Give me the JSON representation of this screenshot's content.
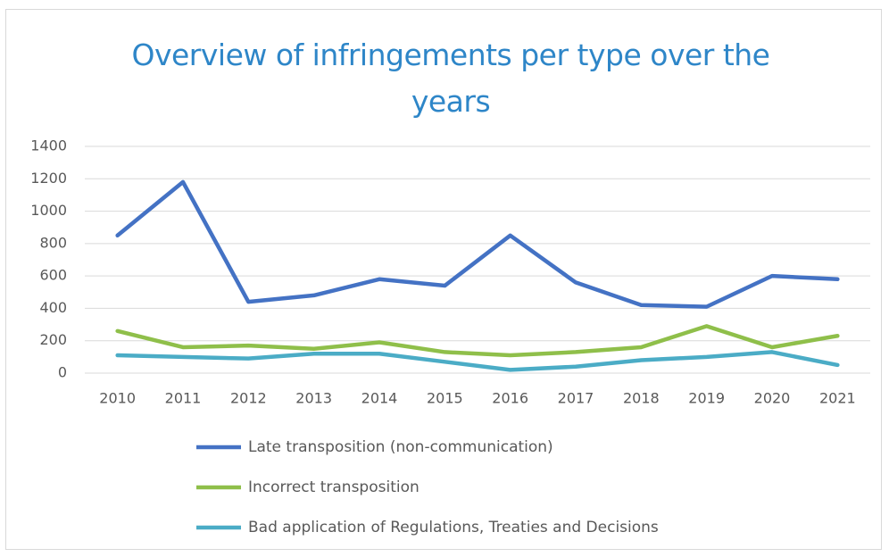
{
  "chart_data": {
    "type": "line",
    "title": "Overview of infringements per type over the years",
    "categories": [
      "2010",
      "2011",
      "2012",
      "2013",
      "2014",
      "2015",
      "2016",
      "2017",
      "2018",
      "2019",
      "2020",
      "2021"
    ],
    "series": [
      {
        "name": "Late transposition (non-communication)",
        "color": "#4472c4",
        "values": [
          850,
          1180,
          440,
          480,
          580,
          540,
          850,
          560,
          420,
          410,
          600,
          580
        ]
      },
      {
        "name": "Incorrect transposition",
        "color": "#8fbf4a",
        "values": [
          260,
          160,
          170,
          150,
          190,
          130,
          110,
          130,
          160,
          290,
          160,
          230
        ]
      },
      {
        "name": "Bad application of Regulations, Treaties and Decisions",
        "color": "#4bacc6",
        "values": [
          110,
          100,
          90,
          120,
          120,
          70,
          20,
          40,
          80,
          100,
          130,
          50
        ]
      }
    ],
    "ylim": [
      0,
      1400
    ],
    "yticks": [
      0,
      200,
      400,
      600,
      800,
      1000,
      1200,
      1400
    ],
    "grid": true,
    "legend": "bottom"
  }
}
